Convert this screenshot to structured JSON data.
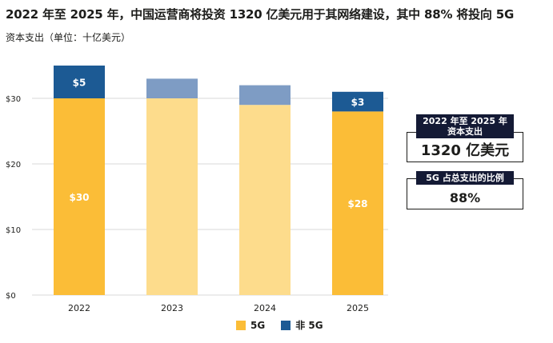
{
  "title": "2022 年至 2025 年，中国运营商将投资 1320 亿美元用于其网络建设，其中 88% 将投向 5G",
  "subtitle": "资本支出（单位：十亿美元）",
  "callouts": {
    "total_label": "2022 年至 2025 年资本支出",
    "total_value": "1320 亿美元",
    "share_label": "5G 占总支出的比例",
    "share_value": "88%"
  },
  "colors": {
    "fiveG": "#fbbd37",
    "fiveG_light": "#fddc8c",
    "non5G": "#1c5a94",
    "non5G_light": "#7e9cc4",
    "grid": "#d9d9d9"
  },
  "chart_data": {
    "type": "bar",
    "stacked": true,
    "categories": [
      "2022",
      "2023",
      "2024",
      "2025"
    ],
    "series": [
      {
        "name": "5G",
        "values": [
          30,
          30,
          29,
          28
        ],
        "labels": [
          "$30",
          "",
          "",
          "$28"
        ]
      },
      {
        "name": "非 5G",
        "values": [
          5,
          3,
          3,
          3
        ],
        "labels": [
          "$5",
          "",
          "",
          "$3"
        ]
      }
    ],
    "highlighted": [
      true,
      false,
      false,
      true
    ],
    "yticks": [
      "$0",
      "$10",
      "$20",
      "$30"
    ],
    "ytick_values": [
      0,
      10,
      20,
      30
    ],
    "ylim": [
      0,
      36
    ],
    "xlabel": "",
    "ylabel": "资本支出（单位：十亿美元）",
    "grid": true
  }
}
